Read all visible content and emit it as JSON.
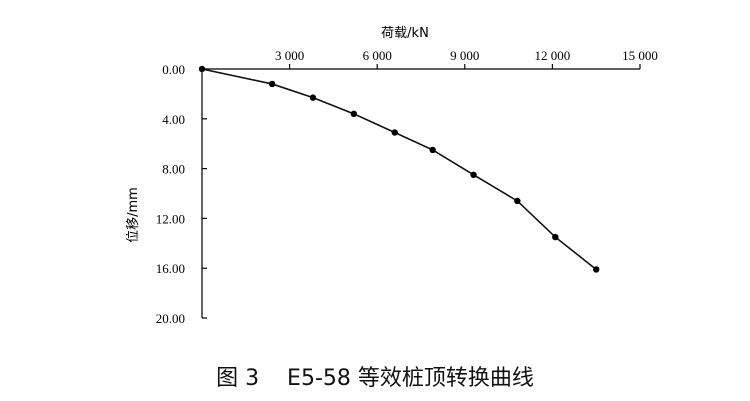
{
  "caption": "图 3    E5-58 等效桩顶转换曲线",
  "chart_data": {
    "type": "line",
    "xlabel": "荷载/kN",
    "ylabel": "位移/mm",
    "x_axis_position": "top",
    "y_axis_inverted": true,
    "xlim": [
      0,
      15000
    ],
    "ylim": [
      0,
      20
    ],
    "x_ticks": [
      3000,
      6000,
      9000,
      12000,
      15000
    ],
    "x_tick_labels": [
      "3 000",
      "6 000",
      "9 000",
      "12 000",
      "15 000"
    ],
    "y_ticks": [
      0,
      4,
      8,
      12,
      16,
      20
    ],
    "y_tick_labels": [
      "0.00",
      "4.00",
      "8.00",
      "12.00",
      "16.00",
      "20.00"
    ],
    "grid": false,
    "series": [
      {
        "x": [
          0,
          2400,
          3800,
          5200,
          6600,
          7900,
          9300,
          10800,
          12100,
          13500
        ],
        "y": [
          0,
          1.2,
          2.3,
          3.6,
          5.1,
          6.5,
          8.5,
          10.6,
          13.5,
          16.1
        ]
      }
    ]
  }
}
